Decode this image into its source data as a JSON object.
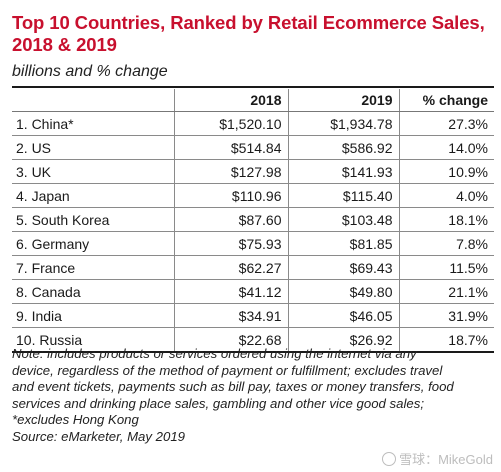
{
  "title_line1": "Top 10 Countries, Ranked by Retail Ecommerce Sales,",
  "title_line2": "2018 & 2019",
  "subtitle": "billions and % change",
  "chart_data": {
    "type": "table",
    "title": "Top 10 Countries, Ranked by Retail Ecommerce Sales, 2018 & 2019",
    "subtitle": "billions and % change",
    "columns": [
      "",
      "2018",
      "2019",
      "% change"
    ],
    "rows": [
      {
        "country": "1. China*",
        "y2018": "$1,520.10",
        "y2019": "$1,934.78",
        "change": "27.3%"
      },
      {
        "country": "2. US",
        "y2018": "$514.84",
        "y2019": "$586.92",
        "change": "14.0%"
      },
      {
        "country": "3. UK",
        "y2018": "$127.98",
        "y2019": "$141.93",
        "change": "10.9%"
      },
      {
        "country": "4. Japan",
        "y2018": "$110.96",
        "y2019": "$115.40",
        "change": "4.0%"
      },
      {
        "country": "5. South Korea",
        "y2018": "$87.60",
        "y2019": "$103.48",
        "change": "18.1%"
      },
      {
        "country": "6. Germany",
        "y2018": "$75.93",
        "y2019": "$81.85",
        "change": "7.8%"
      },
      {
        "country": "7. France",
        "y2018": "$62.27",
        "y2019": "$69.43",
        "change": "11.5%"
      },
      {
        "country": "8. Canada",
        "y2018": "$41.12",
        "y2019": "$49.80",
        "change": "21.1%"
      },
      {
        "country": "9. India",
        "y2018": "$34.91",
        "y2019": "$46.05",
        "change": "31.9%"
      },
      {
        "country": "10. Russia",
        "y2018": "$22.68",
        "y2019": "$26.92",
        "change": "18.7%"
      }
    ]
  },
  "notes": {
    "lines": [
      "Note: includes products or services ordered using the internet via any",
      "device, regardless of the method of payment or fulfillment; excludes travel",
      "and event tickets, payments such as bill pay, taxes or money transfers, food",
      "services and drinking place sales, gambling and other vice good sales;",
      "*excludes Hong Kong",
      "Source: eMarketer, May 2019"
    ]
  },
  "watermark": "雪球：MikeGold",
  "colors": {
    "title": "#c8102e",
    "text": "#1a1a1a",
    "rule": "#8a8a8a"
  }
}
